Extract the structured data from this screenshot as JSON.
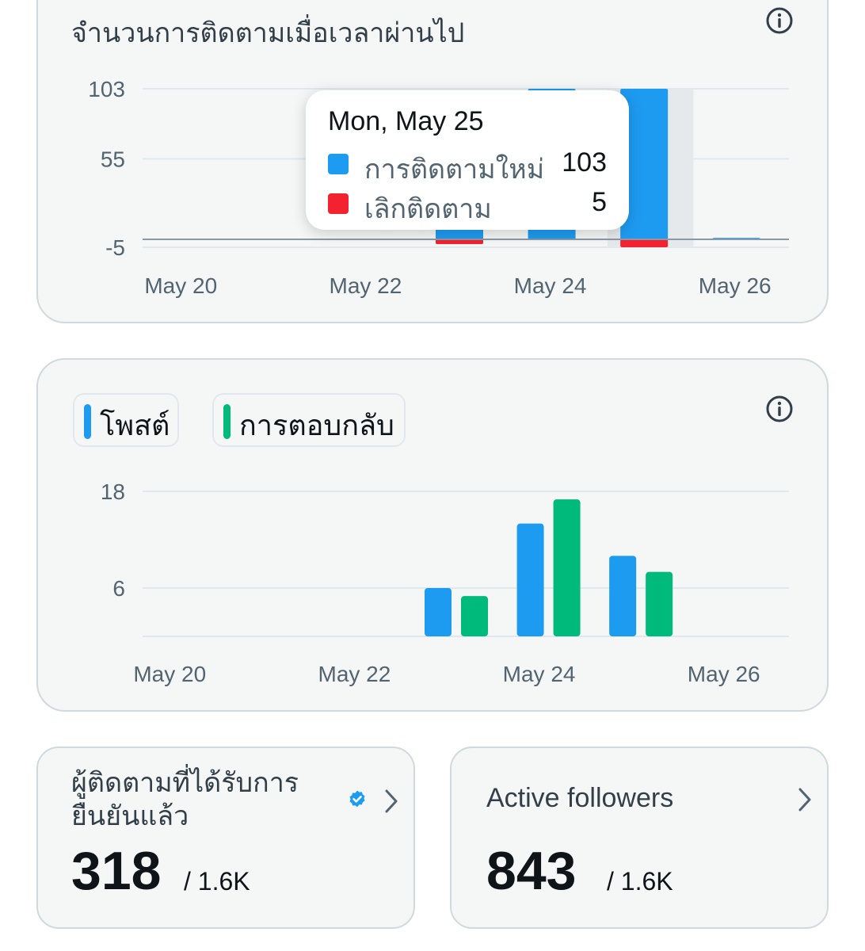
{
  "follows_card": {
    "title": "จำนวนการติดตามเมื่อเวลาผ่านไป",
    "info_icon": "info-icon",
    "tooltip": {
      "date": "Mon, May 25",
      "rows": [
        {
          "label": "การติดตามใหม่",
          "value": "103",
          "color": "#1d9bf0"
        },
        {
          "label": "เลิกติดตาม",
          "value": "5",
          "color": "#f4212e"
        }
      ]
    }
  },
  "posts_card": {
    "chips": [
      {
        "label": "โพสต์",
        "color": "#1d9bf0"
      },
      {
        "label": "การตอบกลับ",
        "color": "#00ba7c"
      }
    ],
    "info_icon": "info-icon"
  },
  "chart_data": [
    {
      "type": "bar",
      "title": "จำนวนการติดตามเมื่อเวลาผ่านไป",
      "x_tick_labels": [
        "May 20",
        "May 22",
        "May 24",
        "May 26"
      ],
      "y_tick_labels": [
        "103",
        "55",
        "-5"
      ],
      "categories": [
        "May 20",
        "May 21",
        "May 22",
        "May 23",
        "May 24",
        "May 25",
        "May 26"
      ],
      "ylim": [
        -5,
        103
      ],
      "grid": true,
      "highlighted_category": "May 25",
      "series": [
        {
          "name": "การติดตามใหม่",
          "color": "#1d9bf0",
          "values": [
            0,
            0,
            0,
            10,
            103,
            103,
            1
          ]
        },
        {
          "name": "เลิกติดตาม",
          "color": "#f4212e",
          "values": [
            0,
            0,
            0,
            -3,
            0,
            -5,
            0
          ]
        }
      ]
    },
    {
      "type": "bar",
      "x_tick_labels": [
        "May 20",
        "May 22",
        "May 24",
        "May 26"
      ],
      "y_tick_labels": [
        "18",
        "6"
      ],
      "categories": [
        "May 20",
        "May 21",
        "May 22",
        "May 23",
        "May 24",
        "May 25",
        "May 26"
      ],
      "ylim": [
        0,
        18
      ],
      "grid": true,
      "series": [
        {
          "name": "โพสต์",
          "color": "#1d9bf0",
          "values": [
            0,
            0,
            0,
            6,
            14,
            10,
            0
          ]
        },
        {
          "name": "การตอบกลับ",
          "color": "#00ba7c",
          "values": [
            0,
            0,
            0,
            5,
            17,
            8,
            0
          ]
        }
      ]
    }
  ],
  "stats": [
    {
      "title": "ผู้ติดตามที่ได้รับการยืนยันแล้ว",
      "title_line1": "ผู้ติดตามที่ได้รับการ",
      "title_line2": "ยืนยันแล้ว",
      "value": "318",
      "total": "/ 1.6K",
      "badge_icon": "verified-badge-icon",
      "chevron_icon": "chevron-right-icon"
    },
    {
      "title": "Active followers",
      "value": "843",
      "total": "/ 1.6K",
      "chevron_icon": "chevron-right-icon"
    }
  ]
}
